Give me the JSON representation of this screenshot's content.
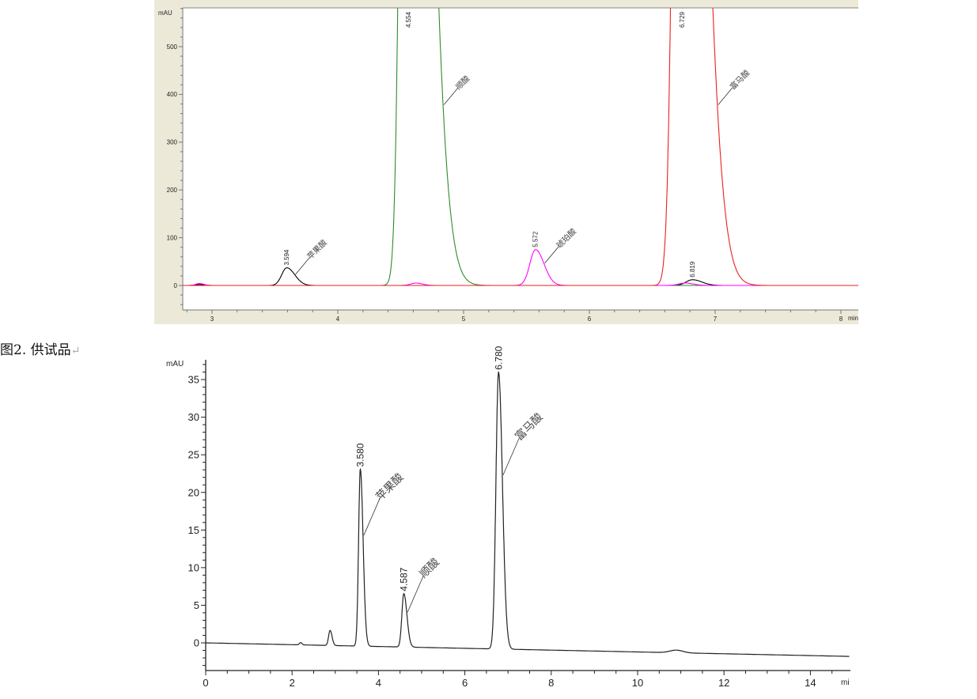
{
  "caption": {
    "text": "图2. 供试品",
    "return_mark": "↵"
  },
  "chart_data": [
    {
      "type": "line",
      "ylabel": "mAU",
      "xlabel": "min",
      "xlim": [
        2.77,
        8.14
      ],
      "ylim": [
        -52,
        582
      ],
      "xticks": [
        3,
        4,
        5,
        6,
        7,
        8
      ],
      "yticks": [
        0,
        100,
        200,
        300,
        400,
        500
      ],
      "grid": false,
      "background": "#ece9d8",
      "series": [
        {
          "color": "#000000",
          "baseline": 0,
          "peaks": [
            {
              "rt": 2.9,
              "height": 2,
              "sigma": 0.03,
              "tail": 1.2
            },
            {
              "rt": 3.594,
              "height": 37,
              "sigma": 0.04,
              "tail": 1.6,
              "rt_label": "3.594",
              "compound": "苹果酸"
            },
            {
              "rt": 6.819,
              "height": 12,
              "sigma": 0.05,
              "tail": 1.5,
              "rt_label": "6.819"
            }
          ]
        },
        {
          "color": "#2e8b2e",
          "baseline": 0,
          "peaks": [
            {
              "rt": 4.554,
              "height": 2600,
              "sigma": 0.045,
              "tail": 3.2,
              "rt_label": "4.554",
              "compound": "顺酸"
            }
          ]
        },
        {
          "color": "#ff00ff",
          "baseline": 0,
          "peaks": [
            {
              "rt": 2.9,
              "height": 4,
              "sigma": 0.03,
              "tail": 1.2
            },
            {
              "rt": 4.62,
              "height": 5,
              "sigma": 0.04,
              "tail": 1.3
            },
            {
              "rt": 5.572,
              "height": 75,
              "sigma": 0.045,
              "tail": 1.5,
              "rt_label": "5.572",
              "compound": "琥珀酸"
            },
            {
              "rt": 6.76,
              "height": 5,
              "sigma": 0.05,
              "tail": 1.3
            }
          ]
        },
        {
          "color": "#e8211f",
          "baseline": 0,
          "peaks": [
            {
              "rt": 6.729,
              "height": 2400,
              "sigma": 0.05,
              "tail": 3.0,
              "rt_label": "6.729",
              "compound": "富马酸"
            }
          ]
        }
      ]
    },
    {
      "type": "line",
      "ylabel": "mAU",
      "xlabel": "mi",
      "xlim": [
        0,
        14.9
      ],
      "ylim": [
        -3.7,
        37.5
      ],
      "xticks": [
        0,
        2,
        4,
        6,
        8,
        10,
        12,
        14
      ],
      "yticks": [
        0,
        5,
        10,
        15,
        20,
        25,
        30,
        35
      ],
      "grid": false,
      "series": [
        {
          "color": "#222222",
          "baseline_start": 0,
          "baseline_end": -1.8,
          "peaks": [
            {
              "rt": 2.2,
              "height": 0.3,
              "sigma": 0.03,
              "tail": 1
            },
            {
              "rt": 2.88,
              "height": 2.0,
              "sigma": 0.035,
              "tail": 1.3
            },
            {
              "rt": 3.58,
              "height": 23.5,
              "sigma": 0.04,
              "tail": 1.6,
              "rt_label": "3.580",
              "compound": "苹果酸"
            },
            {
              "rt": 4.587,
              "height": 7.1,
              "sigma": 0.045,
              "tail": 1.6,
              "rt_label": "4.587",
              "compound": "顺酸"
            },
            {
              "rt": 6.78,
              "height": 36.8,
              "sigma": 0.06,
              "tail": 1.5,
              "rt_label": "6.780",
              "compound": "富马酸"
            },
            {
              "rt": 10.9,
              "height": 0.35,
              "sigma": 0.15,
              "tail": 1
            }
          ]
        }
      ]
    }
  ]
}
